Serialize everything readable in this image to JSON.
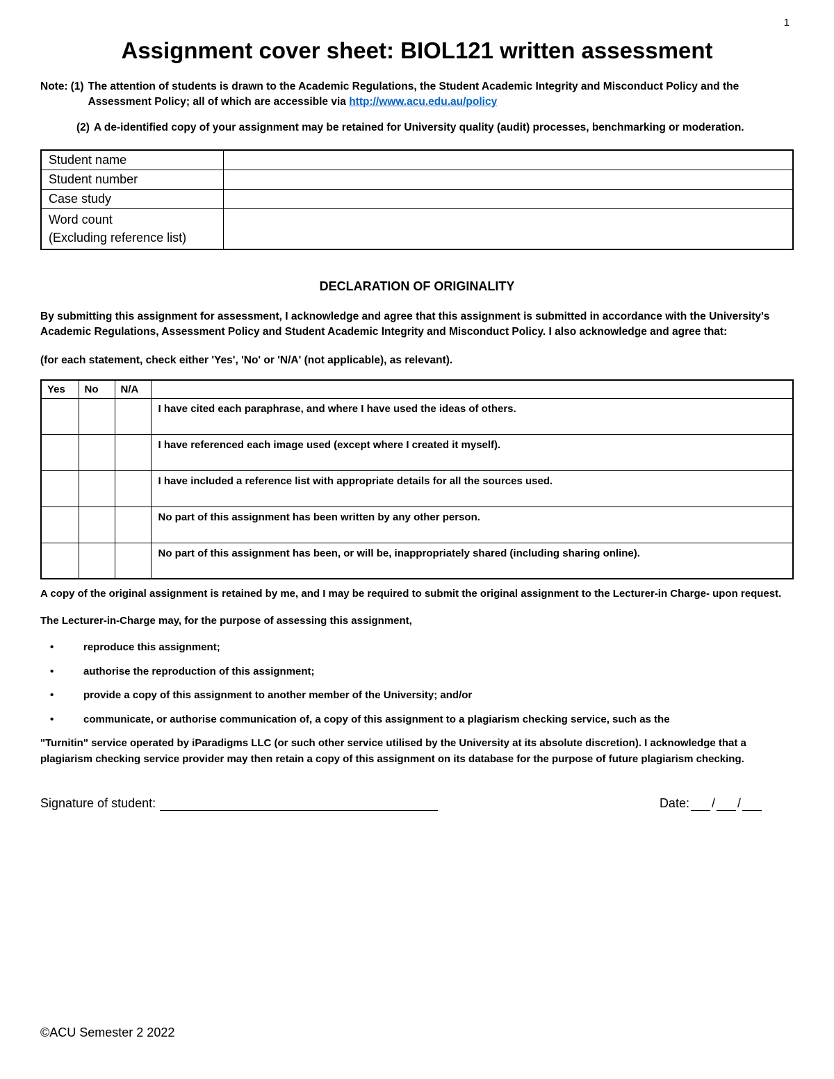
{
  "page_number": "1",
  "title": "Assignment cover sheet: BIOL121 written assessment",
  "note_label": "Note:",
  "note1_prefix": "(1)",
  "note1_text_a": "The attention of students is drawn to the Academic Regulations, the Student Academic Integrity and Misconduct Policy and the Assessment Policy; all of which are accessible via ",
  "note1_link": "http://www.acu.edu.au/policy",
  "note2_prefix": "(2)",
  "note2_text": "A de-identified copy of your assignment may be retained for University quality (audit) processes, benchmarking or moderation.",
  "info_rows": {
    "student_name": "Student name",
    "student_number": "Student number",
    "case_study": "Case study",
    "word_count_line1": "Word count",
    "word_count_line2": "(Excluding reference list)"
  },
  "declaration_title": "DECLARATION OF ORIGINALITY",
  "decl_intro": "By submitting this assignment for assessment, I acknowledge and agree that this assignment is submitted in accordance with the University's Academic Regulations, Assessment Policy and Student Academic Integrity and Misconduct Policy. I also acknowledge and agree that:",
  "decl_instruction": "(for each statement, check either 'Yes', 'No' or 'N/A' (not applicable), as relevant).",
  "decl_headers": {
    "yes": "Yes",
    "no": "No",
    "na": "N/A"
  },
  "decl_statements": [
    "I have cited each paraphrase, and where I have used the ideas of others.",
    "I have referenced each image used (except where I created it myself).",
    "I have included a reference list with appropriate details for all the sources used.",
    "No part of this assignment has been written by any other person.",
    "No part of this assignment has been, or will be, inappropriately shared (including sharing online)."
  ],
  "post_table": "A copy of the original assignment is retained by me, and I may be required to submit the original assignment to the Lecturer-in Charge- upon request.",
  "lecturer_intro": "The Lecturer-in-Charge may, for the purpose of assessing this assignment,",
  "bullets": [
    "reproduce this assignment;",
    "authorise the reproduction of this assignment;",
    "provide a copy of this assignment to another member of the University; and/or"
  ],
  "last_bullet": "communicate, or authorise communication of, a copy of this assignment to a plagiarism checking service, such as the",
  "last_bullet_cont": "\"Turnitin\" service operated by iParadigms LLC (or such other service utilised by the University at its absolute discretion). I acknowledge that a plagiarism checking service provider may then retain a copy of this assignment on its database for the purpose of future plagiarism checking.",
  "sig_label": "Signature of student:",
  "date_label": "Date:",
  "date_sep": "/",
  "footer": "©ACU Semester 2 2022",
  "colors": {
    "link": "#0563c1",
    "border": "#000000",
    "text": "#000000",
    "background": "#ffffff"
  }
}
